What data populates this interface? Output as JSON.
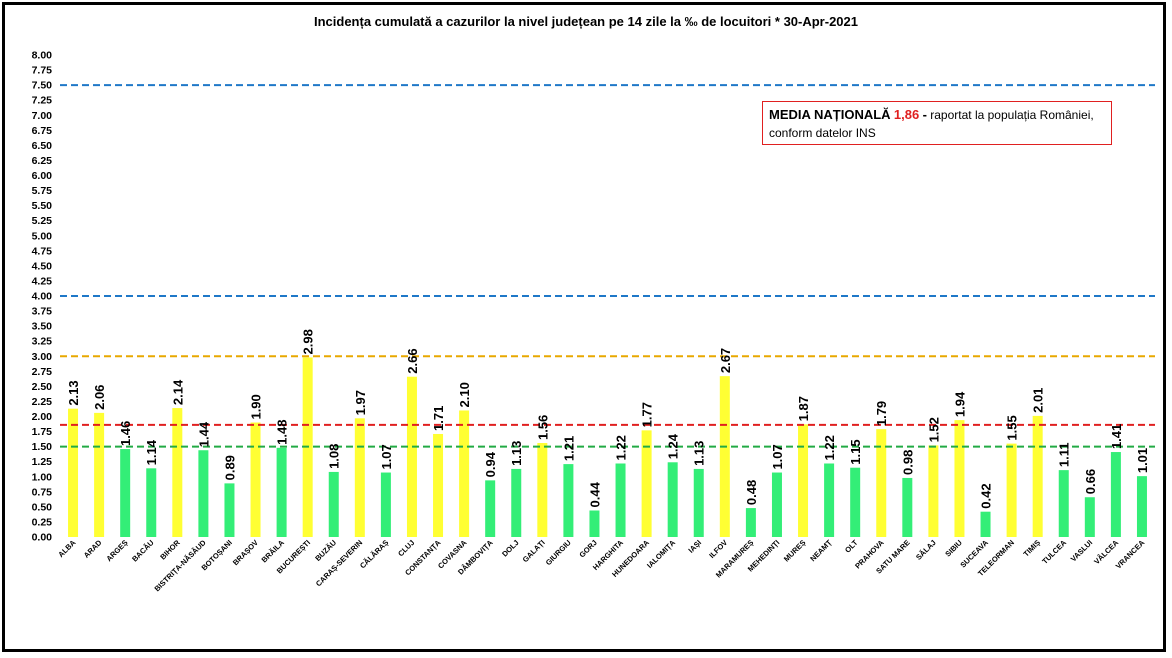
{
  "chart_data": {
    "type": "bar",
    "title": "Incidența cumulată a cazurilor la nivel județean pe 14 zile la ‰ de locuitori *   30-Apr-2021",
    "xlabel": "",
    "ylabel": "",
    "ylim": [
      0,
      8
    ],
    "ytick_step": 0.25,
    "grid": false,
    "categories": [
      "ALBA",
      "ARAD",
      "ARGEȘ",
      "BACĂU",
      "BIHOR",
      "BISTRIȚA-NĂSĂUD",
      "BOTOȘANI",
      "BRAȘOV",
      "BRĂILA",
      "BUCUREȘTI",
      "BUZĂU",
      "CARAȘ-SEVERIN",
      "CĂLĂRAȘ",
      "CLUJ",
      "CONSTANȚA",
      "COVASNA",
      "DÂMBOVIȚA",
      "DOLJ",
      "GALAȚI",
      "GIURGIU",
      "GORJ",
      "HARGHITA",
      "HUNEDOARA",
      "IALOMIȚA",
      "IAȘI",
      "ILFOV",
      "MARAMUREȘ",
      "MEHEDINȚI",
      "MUREȘ",
      "NEAMȚ",
      "OLT",
      "PRAHOVA",
      "SATU MARE",
      "SĂLAJ",
      "SIBIU",
      "SUCEAVA",
      "TELEORMAN",
      "TIMIȘ",
      "TULCEA",
      "VASLUI",
      "VÂLCEA",
      "VRANCEA"
    ],
    "values": [
      2.13,
      2.06,
      1.46,
      1.14,
      2.14,
      1.44,
      0.89,
      1.9,
      1.48,
      2.98,
      1.08,
      1.97,
      1.07,
      2.66,
      1.71,
      2.1,
      0.94,
      1.13,
      1.56,
      1.21,
      0.44,
      1.22,
      1.77,
      1.24,
      1.13,
      2.67,
      0.48,
      1.07,
      1.87,
      1.22,
      1.15,
      1.79,
      0.98,
      1.52,
      1.94,
      0.42,
      1.55,
      2.01,
      1.11,
      0.66,
      1.41,
      1.01
    ],
    "value_labels": [
      "2.13",
      "2.06",
      "1.46",
      "1.14",
      "2.14",
      "1.44",
      "0.89",
      "1.90",
      "1.48",
      "2.98",
      "1.08",
      "1.97",
      "1.07",
      "2.66",
      "1.71",
      "2.10",
      "0.94",
      "1.13",
      "1.56",
      "1.21",
      "0.44",
      "1.22",
      "1.77",
      "1.24",
      "1.13",
      "2.67",
      "0.48",
      "1.07",
      "1.87",
      "1.22",
      "1.15",
      "1.79",
      "0.98",
      "1.52",
      "1.94",
      "0.42",
      "1.55",
      "2.01",
      "1.11",
      "0.66",
      "1.41",
      "1.01"
    ],
    "bar_colors": {
      "low": "#33ee77",
      "high": "#ffff33",
      "threshold": 1.5
    },
    "reference_lines": [
      {
        "value": 7.5,
        "color": "#1f78c8"
      },
      {
        "value": 4.0,
        "color": "#1f78c8"
      },
      {
        "value": 3.0,
        "color": "#e8a800"
      },
      {
        "value": 1.86,
        "color": "#e02020"
      },
      {
        "value": 1.5,
        "color": "#22aa44"
      }
    ]
  },
  "note": {
    "bold": "MEDIA NAȚIONALĂ",
    "value": "1,86",
    "dash": "-",
    "text1": "raportat la populația României,",
    "text2": "conform datelor INS"
  }
}
